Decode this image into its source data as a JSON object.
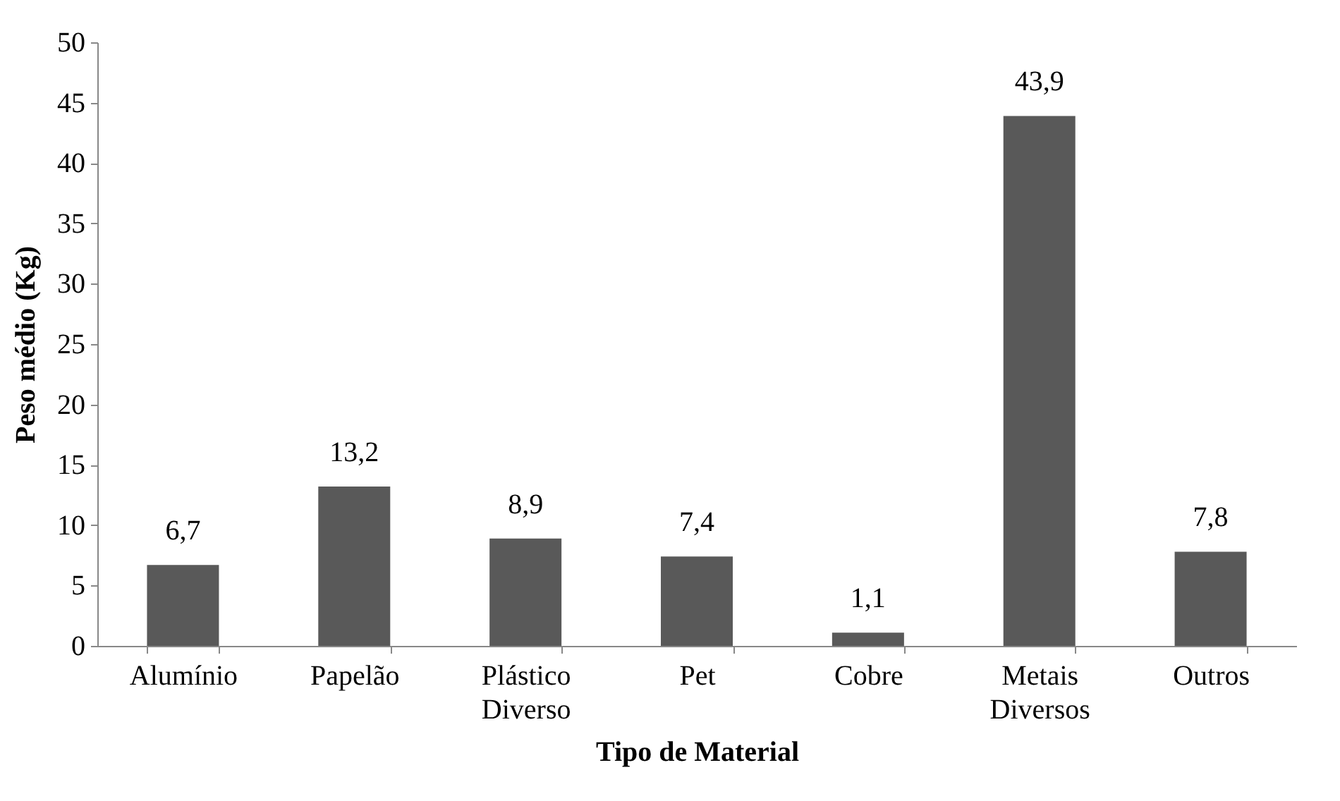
{
  "chart_data": {
    "type": "bar",
    "xlabel": "Tipo de Material",
    "ylabel": "Peso médio (Kg)",
    "categories": [
      "Alumínio",
      "Papelão",
      "Plástico Diverso",
      "Pet",
      "Cobre",
      "Metais Diversos",
      "Outros"
    ],
    "values": [
      6.7,
      13.2,
      8.9,
      7.4,
      1.1,
      43.9,
      7.8
    ],
    "value_labels": [
      "6,7",
      "13,2",
      "8,9",
      "7,4",
      "1,1",
      "43,9",
      "7,8"
    ],
    "color": "#595959",
    "ylim": [
      0,
      50
    ],
    "yticks": [
      0,
      5,
      10,
      15,
      20,
      25,
      30,
      35,
      40,
      45,
      50
    ],
    "grid": false
  }
}
